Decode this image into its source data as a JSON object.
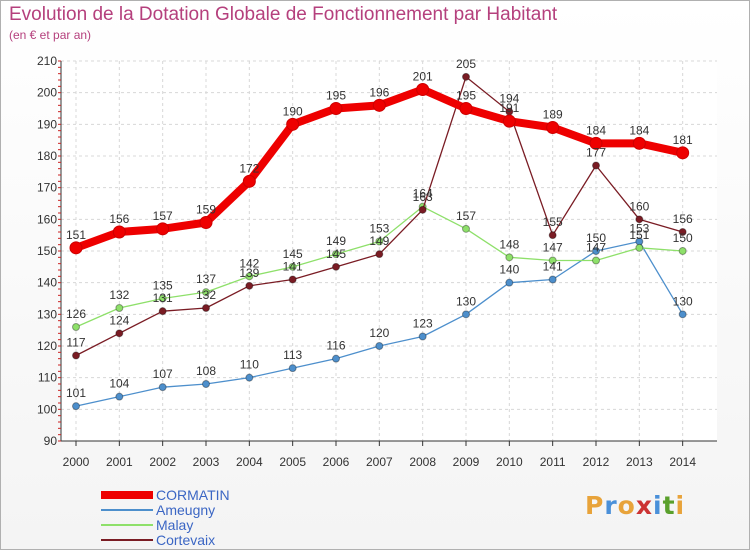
{
  "title": "Evolution de la Dotation Globale de Fonctionnement par Habitant",
  "subtitle": "(en € et par an)",
  "logo": {
    "letters": [
      "P",
      "r",
      "o",
      "x",
      "i",
      "t",
      "i"
    ],
    "colors": [
      "#e8a33a",
      "#4a90d9",
      "#e8a33a",
      "#cc3333",
      "#4a90d9",
      "#5aa02c",
      "#e8a33a"
    ]
  },
  "chart_data": {
    "type": "line",
    "title": "Evolution de la Dotation Globale de Fonctionnement par Habitant",
    "subtitle": "(en € et par an)",
    "xlabel": "",
    "ylabel": "",
    "categories": [
      "2000",
      "2001",
      "2002",
      "2003",
      "2004",
      "2005",
      "2006",
      "2007",
      "2008",
      "2009",
      "2010",
      "2011",
      "2012",
      "2013",
      "2014"
    ],
    "ylim": [
      90,
      210
    ],
    "yticks": [
      90,
      100,
      110,
      120,
      130,
      140,
      150,
      160,
      170,
      180,
      190,
      200,
      210
    ],
    "grid": true,
    "legend_position": "bottom-left",
    "series": [
      {
        "name": "CORMATIN",
        "color": "#ee0000",
        "emphasis": true,
        "values": [
          151,
          156,
          157,
          159,
          172,
          190,
          195,
          196,
          201,
          195,
          191,
          189,
          184,
          184,
          181
        ]
      },
      {
        "name": "Ameugny",
        "color": "#4d8fcc",
        "emphasis": false,
        "values": [
          101,
          104,
          107,
          108,
          110,
          113,
          116,
          120,
          123,
          130,
          140,
          141,
          150,
          153,
          130
        ]
      },
      {
        "name": "Malay",
        "color": "#8ee06a",
        "emphasis": false,
        "values": [
          126,
          132,
          135,
          137,
          142,
          145,
          149,
          153,
          164,
          157,
          148,
          147,
          147,
          151,
          150
        ]
      },
      {
        "name": "Cortevaix",
        "color": "#7a1c24",
        "emphasis": false,
        "values": [
          117,
          124,
          131,
          132,
          139,
          141,
          145,
          149,
          163,
          205,
          194,
          155,
          177,
          160,
          156
        ]
      }
    ]
  }
}
